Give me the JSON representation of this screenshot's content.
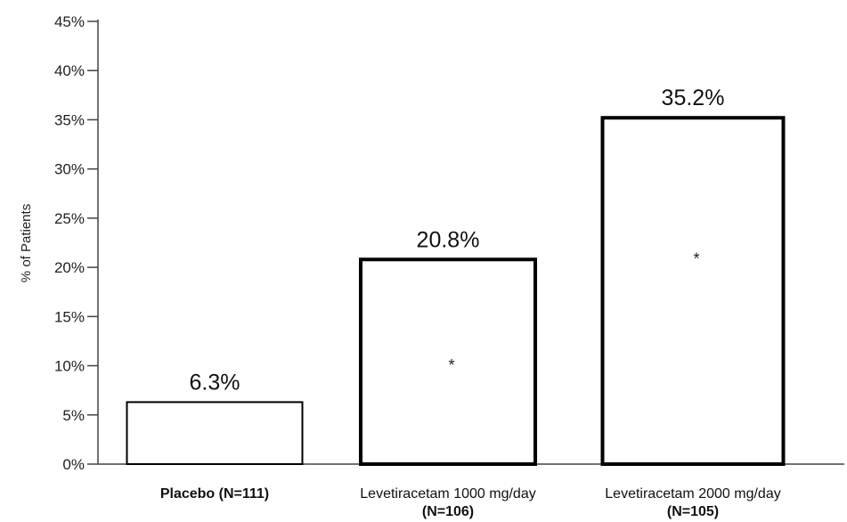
{
  "chart_data": {
    "type": "bar",
    "title": "",
    "xlabel": "",
    "ylabel": "% of Patients",
    "ylim": [
      0,
      45
    ],
    "yticks": [
      0,
      5,
      10,
      15,
      20,
      25,
      30,
      35,
      40,
      45
    ],
    "ytick_labels": [
      "0%",
      "5%",
      "10%",
      "15%",
      "20%",
      "25%",
      "30%",
      "35%",
      "40%",
      "45%"
    ],
    "grid": false,
    "legend": "none",
    "categories": [
      [
        "Placebo (N=111)"
      ],
      [
        "Levetiracetam 1000 mg/day",
        "(N=106)"
      ],
      [
        "Levetiracetam 2000 mg/day",
        "(N=105)"
      ]
    ],
    "values": [
      6.3,
      20.8,
      35.2
    ],
    "value_labels": [
      "6.3%",
      "20.8%",
      "35.2%"
    ],
    "significance_markers": [
      "",
      "*",
      "*"
    ],
    "colors": {
      "bar_fill": "#ffffff",
      "bar_stroke": "#000000",
      "axis": "#444444"
    },
    "bar_stroke_styles": [
      "thin",
      "thick",
      "thick"
    ]
  }
}
